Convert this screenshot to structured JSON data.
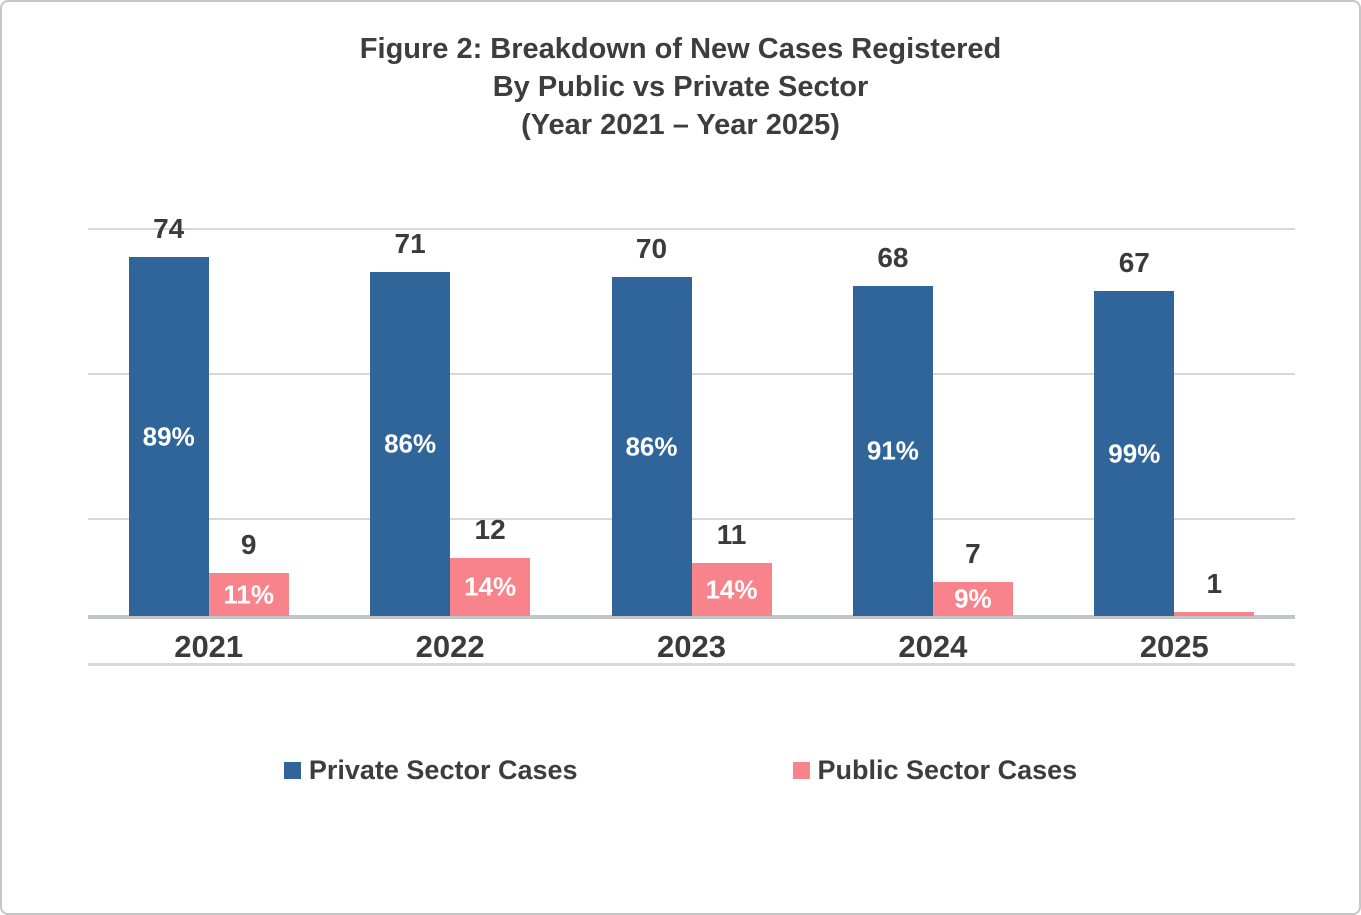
{
  "title": {
    "line1": "Figure 2: Breakdown of New Cases Registered",
    "line2": "By Public vs Private Sector",
    "line3": "(Year 2021 – Year 2025)"
  },
  "legend": {
    "items": [
      {
        "label": "Private Sector Cases",
        "color": "#30659A"
      },
      {
        "label": "Public Sector Cases",
        "color": "#F9838A"
      }
    ]
  },
  "chart_data": {
    "type": "bar",
    "title": "Figure 2: Breakdown of New Cases Registered By Public vs Private Sector (Year 2021 – Year 2025)",
    "categories": [
      "2021",
      "2022",
      "2023",
      "2024",
      "2025"
    ],
    "series": [
      {
        "name": "Private Sector Cases",
        "color": "#30659A",
        "values": [
          74,
          71,
          70,
          68,
          67
        ],
        "percent_labels": [
          "89%",
          "86%",
          "86%",
          "91%",
          "99%"
        ]
      },
      {
        "name": "Public Sector Cases",
        "color": "#F9838A",
        "values": [
          9,
          12,
          11,
          7,
          1
        ],
        "percent_labels": [
          "11%",
          "14%",
          "14%",
          "9%",
          ""
        ]
      }
    ],
    "ylim": [
      -10,
      80
    ],
    "gridline_values": [
      80,
      50,
      20,
      -10
    ],
    "axis_cross_value": 0,
    "y_axis_tick_labels_visible": false,
    "grid": true,
    "legend_position": "bottom",
    "value_label_position": "outside-end",
    "percent_label_position": "inside-center"
  },
  "colors": {
    "private_bar": "#30659A",
    "public_bar": "#F9838A",
    "label_text": "#3B3B3B",
    "percent_text": "#FFFFFF",
    "gridline": "#D8D8D8",
    "axis_line": "#C2C5C8",
    "frame_border": "#C7C7C7"
  }
}
